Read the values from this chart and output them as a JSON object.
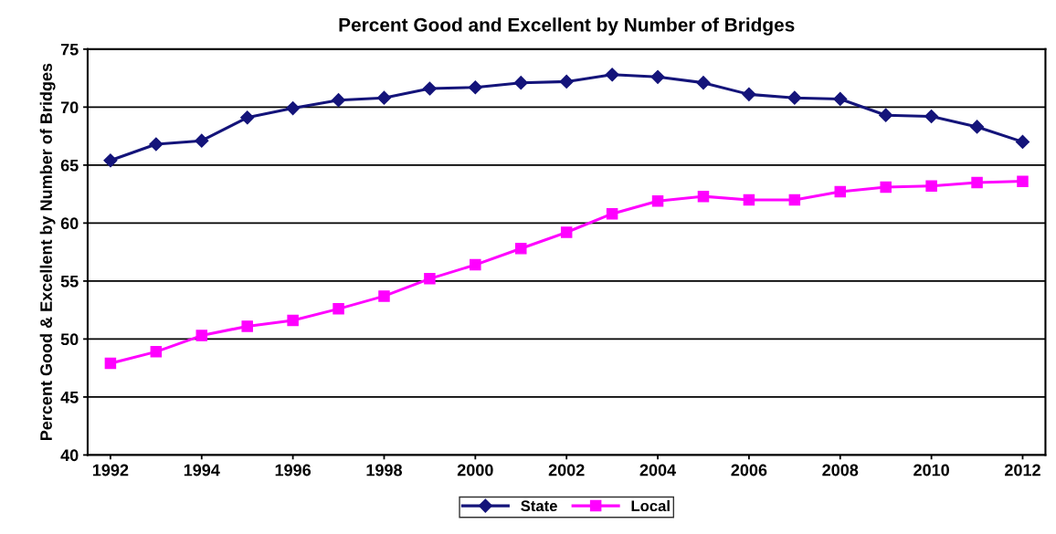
{
  "chart_data": {
    "type": "line",
    "title": "Percent Good and Excellent by Number of Bridges",
    "ylabel": "Percent Good & Excellent by Number of Bridges",
    "x": [
      1992,
      1993,
      1994,
      1995,
      1996,
      1997,
      1998,
      1999,
      2000,
      2001,
      2002,
      2003,
      2004,
      2005,
      2006,
      2007,
      2008,
      2009,
      2010,
      2011,
      2012
    ],
    "series": [
      {
        "name": "State",
        "color": "#14147a",
        "marker": "diamond",
        "values": [
          65.4,
          66.8,
          67.1,
          69.1,
          69.9,
          70.6,
          70.8,
          71.6,
          71.7,
          72.1,
          72.2,
          72.8,
          72.6,
          72.1,
          71.1,
          70.8,
          70.7,
          69.3,
          69.2,
          68.3,
          67.0
        ]
      },
      {
        "name": "Local",
        "color": "#ff00ff",
        "marker": "square",
        "values": [
          47.9,
          48.9,
          50.3,
          51.1,
          51.6,
          52.6,
          53.7,
          55.2,
          56.4,
          57.8,
          59.2,
          60.8,
          61.9,
          62.3,
          62.0,
          62.0,
          62.7,
          63.1,
          63.2,
          63.5,
          63.6
        ]
      }
    ],
    "xlim": [
      1991.5,
      2012.5
    ],
    "xticks": [
      1992,
      1994,
      1996,
      1998,
      2000,
      2002,
      2004,
      2006,
      2008,
      2010,
      2012
    ],
    "ylim": [
      40,
      75
    ],
    "yticks": [
      40,
      45,
      50,
      55,
      60,
      65,
      70,
      75
    ],
    "grid": "y",
    "legend": "bottom",
    "line_style": "solid"
  }
}
